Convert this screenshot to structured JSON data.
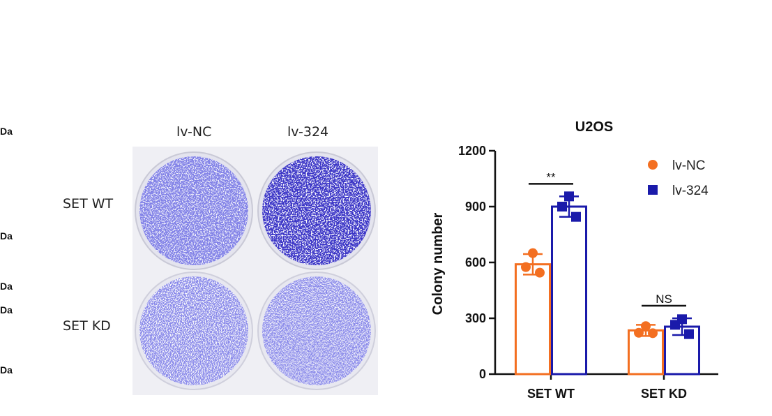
{
  "left_edge_labels": [
    "Da",
    "Da",
    "Da",
    "Da",
    "Da"
  ],
  "plates": {
    "columns": [
      "lv-NC",
      "lv-324"
    ],
    "rows": [
      "SET WT",
      "SET KD"
    ]
  },
  "chart_data": {
    "type": "bar",
    "title": "U2OS",
    "ylabel": "Colony number",
    "xlabel": "",
    "categories": [
      "SET WT",
      "SET KD"
    ],
    "ylim": [
      0,
      1200
    ],
    "yticks": [
      0,
      300,
      600,
      900,
      1200
    ],
    "legend_position": "top-right",
    "series": [
      {
        "name": "lv-NC",
        "color": "#f36f21",
        "marker": "circle",
        "values": [
          590,
          235
        ],
        "error": [
          55,
          30
        ],
        "points": [
          [
            650,
            575,
            545
          ],
          [
            258,
            222,
            220
          ]
        ]
      },
      {
        "name": "lv-324",
        "color": "#1a1aaa",
        "marker": "square",
        "values": [
          900,
          255
        ],
        "error": [
          55,
          45
        ],
        "points": [
          [
            955,
            900,
            845
          ],
          [
            295,
            265,
            215
          ]
        ]
      }
    ],
    "annotations": [
      {
        "category": "SET WT",
        "text": "**"
      },
      {
        "category": "SET KD",
        "text": "NS"
      }
    ]
  }
}
